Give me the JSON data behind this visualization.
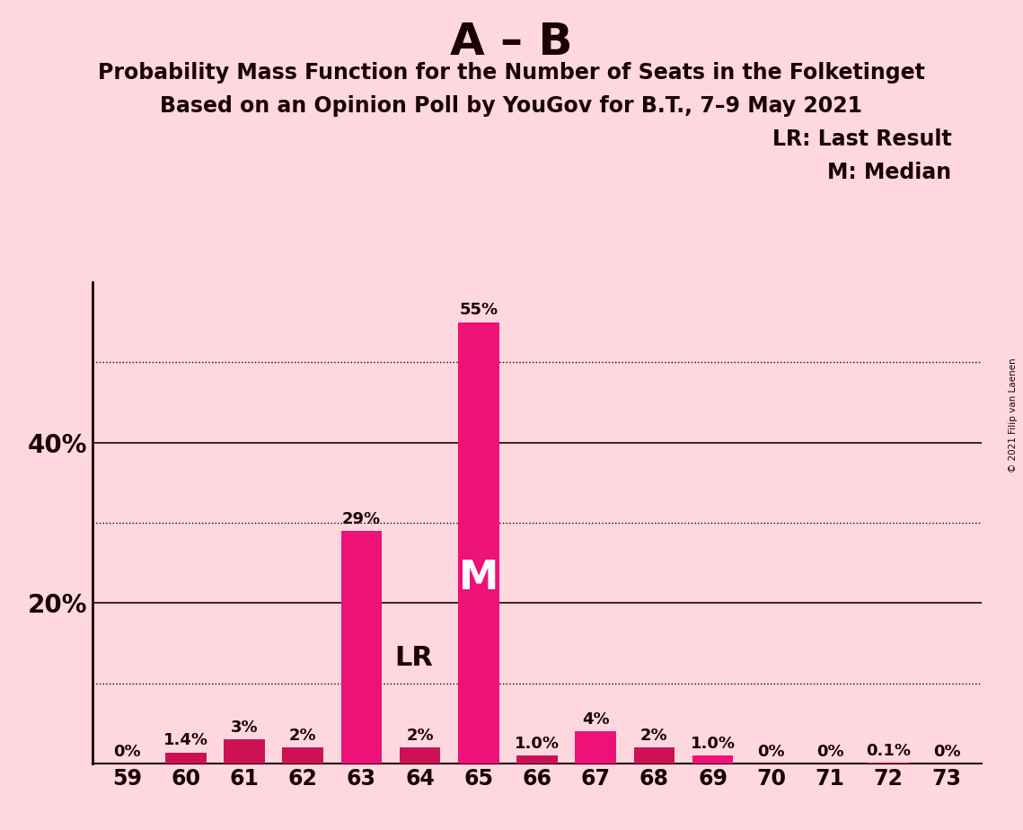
{
  "title_main": "A – B",
  "title_sub1": "Probability Mass Function for the Number of Seats in the Folketinget",
  "title_sub2": "Based on an Opinion Poll by YouGov for B.T., 7–9 May 2021",
  "copyright": "© 2021 Filip van Laenen",
  "categories": [
    59,
    60,
    61,
    62,
    63,
    64,
    65,
    66,
    67,
    68,
    69,
    70,
    71,
    72,
    73
  ],
  "values": [
    0.0,
    1.4,
    3.0,
    2.0,
    29.0,
    2.0,
    55.0,
    1.0,
    4.0,
    2.0,
    1.0,
    0.0,
    0.0,
    0.1,
    0.0
  ],
  "value_labels": [
    "0%",
    "1.4%",
    "3%",
    "2%",
    "29%",
    "2%",
    "55%",
    "1.0%",
    "4%",
    "2%",
    "1.0%",
    "0%",
    "0%",
    "0.1%",
    "0%"
  ],
  "bar_colors_hot": [
    "#EE1177",
    "#EE1177",
    "#EE1177"
  ],
  "bar_colors_dark": [
    "#CC1155"
  ],
  "hot_indices": [
    4,
    6,
    8,
    10
  ],
  "background_color": "#FFD8DF",
  "yticks_solid": [
    20,
    40
  ],
  "yticks_dotted": [
    10,
    30,
    50
  ],
  "ylim": [
    0,
    60
  ],
  "legend_lr": "LR: Last Result",
  "legend_m": "M: Median",
  "color_hot": "#EE1177",
  "color_dark": "#CC1155",
  "color_text": "#1a0008",
  "LR_index": 5,
  "M_index": 6
}
